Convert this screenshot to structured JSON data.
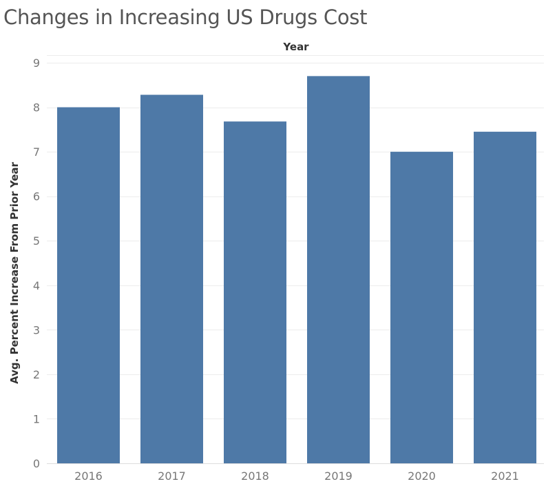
{
  "chart_data": {
    "type": "bar",
    "title": "Changes in Increasing US Drugs Cost",
    "xlabel": "Year",
    "ylabel": "Avg. Percent Increase From Prior Year",
    "categories": [
      "2016",
      "2017",
      "2018",
      "2019",
      "2020",
      "2021"
    ],
    "values": [
      8.0,
      8.28,
      7.68,
      8.7,
      7.0,
      7.45
    ],
    "ylim": [
      0,
      9
    ],
    "yticks": [
      0,
      1,
      2,
      3,
      4,
      5,
      6,
      7,
      8,
      9
    ],
    "grid": true,
    "x_axis_title_position": "top",
    "bar_color": "#4e79a7",
    "grid_color": "#ececec"
  }
}
